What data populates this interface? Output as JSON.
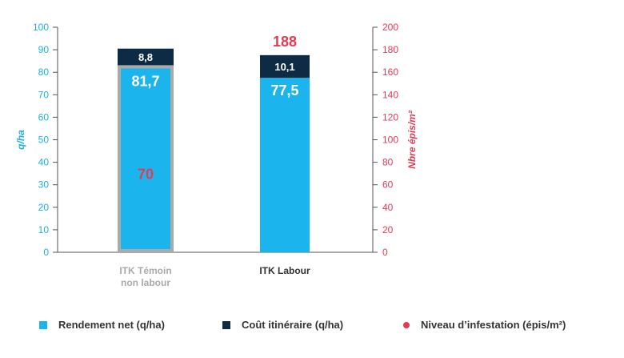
{
  "chart_data": {
    "type": "bar",
    "categories": [
      "ITK Témoin non labour",
      "ITK Labour"
    ],
    "category_lines": [
      [
        "ITK Témoin",
        "non labour"
      ],
      [
        "ITK Labour"
      ]
    ],
    "series": [
      {
        "name": "Rendement net (q/ha)",
        "values": [
          81.7,
          77.5
        ],
        "labels": [
          "81,7",
          "77,5"
        ],
        "color": "#1cb4ec",
        "axis": "left"
      },
      {
        "name": "Coût itinéraire (q/ha)",
        "values": [
          8.8,
          10.1
        ],
        "labels": [
          "8,8",
          "10,1"
        ],
        "color": "#0d2b45",
        "axis": "left"
      },
      {
        "name": "Niveau d’infestation (épis/m²)",
        "values": [
          70,
          188
        ],
        "labels": [
          "70",
          "188"
        ],
        "color": "#e63a52",
        "axis": "right"
      }
    ],
    "ylabel_left": "q/ha",
    "ylabel_right": "Nbre épis/m²",
    "ylim_left": [
      0,
      100
    ],
    "ylim_right": [
      0,
      200
    ],
    "yticks_left": [
      "0",
      "10",
      "20",
      "30",
      "40",
      "50",
      "60",
      "70",
      "80",
      "90",
      "100"
    ],
    "yticks_right": [
      "0",
      "20",
      "40",
      "60",
      "80",
      "100",
      "120",
      "140",
      "160",
      "180",
      "200"
    ],
    "grid": false,
    "legend_position": "bottom",
    "highlight_color": "#aaaaaa",
    "category_colors": [
      "#aaaaaa",
      "#333333"
    ]
  }
}
